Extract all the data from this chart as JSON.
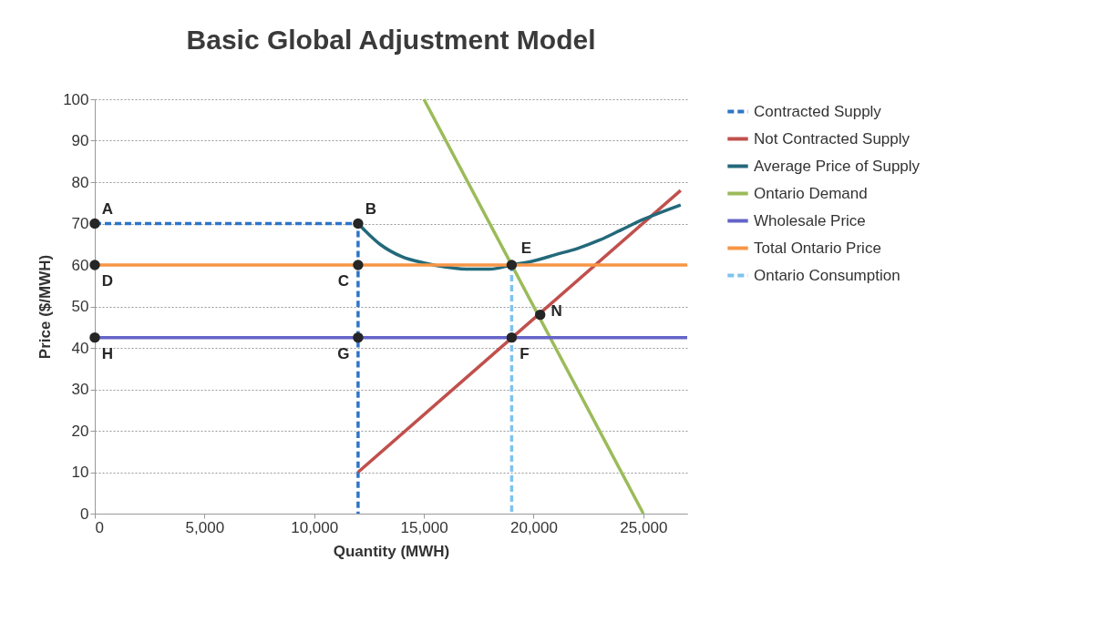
{
  "chart_data": {
    "type": "line",
    "title": "Basic Global Adjustment Model",
    "xlabel": "Quantity (MWH)",
    "ylabel": "Price ($/MWH)",
    "xlim": [
      0,
      27000
    ],
    "ylim": [
      0,
      100
    ],
    "xticks": [
      0,
      {
        "value": 5000,
        "label": "5,000"
      },
      {
        "value": 10000,
        "label": "10,000"
      },
      {
        "value": 15000,
        "label": "15,000"
      },
      {
        "value": 20000,
        "label": "20,000"
      },
      {
        "value": 25000,
        "label": "25,000"
      }
    ],
    "yticks": [
      0,
      10,
      20,
      30,
      40,
      50,
      60,
      70,
      80,
      90,
      100
    ],
    "grid": "y",
    "legend": "right",
    "marker": "none",
    "series": [
      {
        "name": "Contracted Supply",
        "color": "#2e75c8",
        "line_style": "dashed",
        "x": [
          0,
          12000,
          12000
        ],
        "values": [
          70,
          70,
          0
        ]
      },
      {
        "name": "Not Contracted Supply",
        "color": "#c0504d",
        "x": [
          12000,
          26700
        ],
        "values": [
          10,
          78
        ]
      },
      {
        "name": "Average Price of Supply",
        "color": "#23697a",
        "x": [
          12000,
          13000,
          14000,
          15000,
          16000,
          17000,
          18000,
          19000,
          20000,
          21000,
          22000,
          23000,
          24000,
          25000,
          26700
        ],
        "values": [
          70,
          65,
          62,
          60.5,
          59.5,
          59,
          59,
          60,
          61,
          62.5,
          64,
          66,
          68.5,
          71,
          74.5
        ]
      },
      {
        "name": "Ontario Demand",
        "color": "#9bbb59",
        "x": [
          15000,
          25000
        ],
        "values": [
          100,
          0
        ]
      },
      {
        "name": "Wholesale Price",
        "color": "#6464c8",
        "x": [
          0,
          27000
        ],
        "values": [
          42.5,
          42.5
        ]
      },
      {
        "name": "Total Ontario Price",
        "color": "#f79646",
        "x": [
          0,
          27000
        ],
        "values": [
          60,
          60
        ]
      },
      {
        "name": "Ontario Consumption",
        "color": "#7ec3f0",
        "line_style": "dashed",
        "x": [
          19000,
          19000
        ],
        "values": [
          60,
          0
        ]
      },
      {
        "type": "scatter",
        "color": "#262626",
        "marker": "circle",
        "x": [
          0,
          12000,
          12000,
          0,
          19000,
          19000,
          12000,
          0,
          20300
        ],
        "values": [
          70,
          70,
          60,
          60,
          60,
          42.5,
          42.5,
          42.5,
          48
        ]
      }
    ],
    "annotations": [
      {
        "text": "A",
        "x": 0,
        "y": 70
      },
      {
        "text": "B",
        "x": 12000,
        "y": 70
      },
      {
        "text": "C",
        "x": 12000,
        "y": 60
      },
      {
        "text": "D",
        "x": 0,
        "y": 60
      },
      {
        "text": "E",
        "x": 19000,
        "y": 60
      },
      {
        "text": "F",
        "x": 19000,
        "y": 42.5
      },
      {
        "text": "G",
        "x": 12000,
        "y": 42.5
      },
      {
        "text": "H",
        "x": 0,
        "y": 42.5
      },
      {
        "text": "N",
        "x": 20300,
        "y": 48
      }
    ]
  }
}
